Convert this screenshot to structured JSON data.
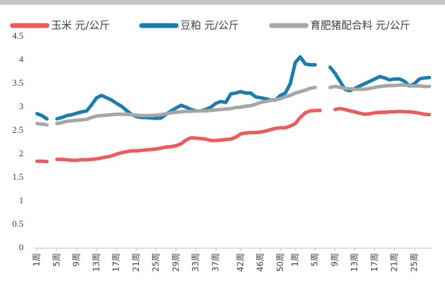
{
  "chart_data": {
    "type": "line",
    "categories": [
      "1周",
      null,
      null,
      null,
      "5周",
      null,
      null,
      null,
      "9周",
      null,
      null,
      null,
      "13周",
      null,
      null,
      null,
      "17周",
      null,
      null,
      null,
      "21周",
      null,
      null,
      null,
      "25周",
      null,
      null,
      null,
      "29周",
      null,
      null,
      null,
      "33周",
      null,
      null,
      null,
      "37周",
      null,
      null,
      null,
      null,
      "42周",
      null,
      null,
      null,
      "46周",
      null,
      null,
      null,
      "50周",
      null,
      null,
      "1周",
      null,
      null,
      null,
      "5周",
      null,
      null,
      null,
      "9周",
      null,
      null,
      null,
      "13周",
      null,
      null,
      null,
      "17周",
      null,
      null,
      null,
      "21周",
      null,
      null,
      null,
      "25周",
      null,
      null,
      null
    ],
    "series": [
      {
        "name": "玉米 元/公斤",
        "color": "#ef5b5b",
        "values": [
          1.85,
          1.85,
          1.84,
          null,
          1.89,
          1.89,
          1.88,
          1.87,
          1.87,
          1.88,
          1.88,
          1.89,
          1.9,
          1.92,
          1.94,
          1.96,
          2.0,
          2.03,
          2.05,
          2.07,
          2.07,
          2.08,
          2.09,
          2.1,
          2.11,
          2.13,
          2.15,
          2.16,
          2.18,
          2.22,
          2.3,
          2.35,
          2.34,
          2.33,
          2.32,
          2.29,
          2.29,
          2.3,
          2.31,
          2.32,
          2.36,
          2.43,
          2.45,
          2.46,
          2.46,
          2.47,
          2.49,
          2.52,
          2.55,
          2.56,
          2.56,
          2.6,
          2.65,
          2.78,
          2.88,
          2.92,
          2.93,
          2.93,
          null,
          null,
          2.95,
          2.97,
          2.95,
          2.92,
          2.9,
          2.87,
          2.85,
          2.86,
          2.88,
          2.89,
          2.89,
          2.9,
          2.9,
          2.91,
          2.9,
          2.9,
          2.89,
          2.87,
          2.85,
          2.84
        ]
      },
      {
        "name": "豆粕 元/公斤",
        "color": "#1a7db0",
        "values": [
          2.86,
          2.82,
          2.75,
          null,
          2.75,
          2.78,
          2.82,
          2.84,
          2.87,
          2.9,
          2.92,
          3.05,
          3.2,
          3.25,
          3.2,
          3.15,
          3.08,
          3.02,
          2.93,
          2.85,
          2.8,
          2.78,
          2.78,
          2.77,
          2.76,
          2.77,
          2.85,
          2.92,
          2.98,
          3.04,
          3.0,
          2.95,
          2.92,
          2.92,
          2.95,
          3.0,
          3.08,
          3.12,
          3.1,
          3.28,
          3.3,
          3.33,
          3.3,
          3.3,
          3.22,
          3.2,
          3.18,
          3.15,
          3.15,
          3.25,
          3.3,
          3.5,
          3.95,
          4.07,
          3.92,
          3.9,
          3.9,
          null,
          null,
          3.85,
          3.72,
          3.55,
          3.38,
          3.35,
          3.4,
          3.45,
          3.5,
          3.55,
          3.6,
          3.65,
          3.62,
          3.58,
          3.6,
          3.6,
          3.55,
          3.45,
          3.5,
          3.6,
          3.62,
          3.63
        ]
      },
      {
        "name": "育肥猪配合料 元/公斤",
        "color": "#a6a6a6",
        "values": [
          2.65,
          2.64,
          2.62,
          null,
          2.65,
          2.67,
          2.7,
          2.71,
          2.72,
          2.73,
          2.74,
          2.78,
          2.81,
          2.82,
          2.83,
          2.84,
          2.85,
          2.85,
          2.85,
          2.84,
          2.83,
          2.82,
          2.82,
          2.82,
          2.83,
          2.84,
          2.86,
          2.88,
          2.89,
          2.9,
          2.91,
          2.91,
          2.92,
          2.92,
          2.92,
          2.93,
          2.94,
          2.95,
          2.96,
          2.97,
          2.99,
          3.0,
          3.02,
          3.03,
          3.06,
          3.1,
          3.12,
          3.14,
          3.16,
          3.18,
          3.22,
          3.25,
          3.3,
          3.33,
          3.36,
          3.4,
          3.42,
          null,
          null,
          3.42,
          3.44,
          3.42,
          3.4,
          3.39,
          3.38,
          3.38,
          3.38,
          3.4,
          3.42,
          3.44,
          3.45,
          3.46,
          3.46,
          3.47,
          3.47,
          3.46,
          3.45,
          3.45,
          3.44,
          3.44
        ]
      }
    ],
    "ylim": [
      0,
      4.5
    ],
    "yticks": [
      0,
      0.5,
      1,
      1.5,
      2,
      2.5,
      3,
      3.5,
      4,
      4.5
    ],
    "grid": false,
    "legend": "top"
  }
}
